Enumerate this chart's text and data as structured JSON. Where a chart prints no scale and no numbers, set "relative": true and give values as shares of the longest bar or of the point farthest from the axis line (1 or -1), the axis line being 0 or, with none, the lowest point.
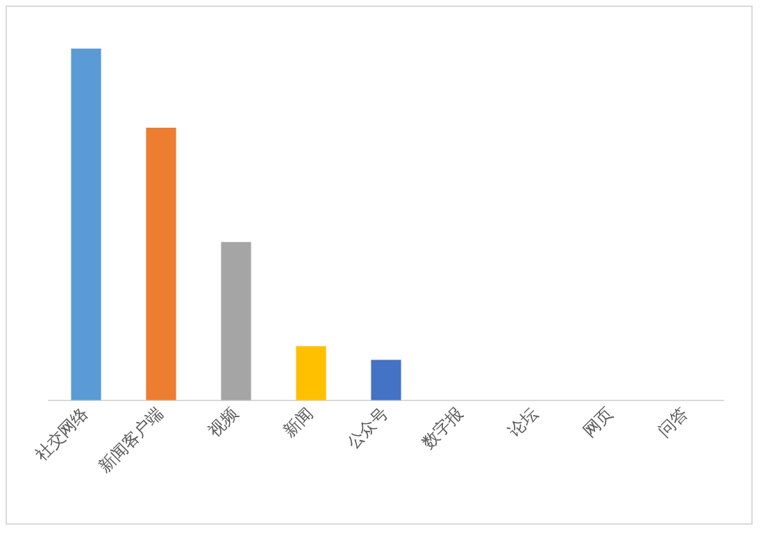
{
  "chart_data": {
    "type": "bar",
    "relative": true,
    "categories": [
      "社交网络",
      "新闻客户端",
      "视频",
      "新闻",
      "公众号",
      "数字报",
      "论坛",
      "网页",
      "问答"
    ],
    "values": [
      1,
      0.775,
      0.45,
      0.154,
      0.115,
      0,
      0,
      0,
      0
    ],
    "colors": [
      "#5b9bd5",
      "#ed7d31",
      "#a5a5a5",
      "#ffc000",
      "#4472c4",
      "#70ad47",
      "#255e91",
      "#9e480e",
      "#636363"
    ],
    "grid": false,
    "legend": false
  }
}
